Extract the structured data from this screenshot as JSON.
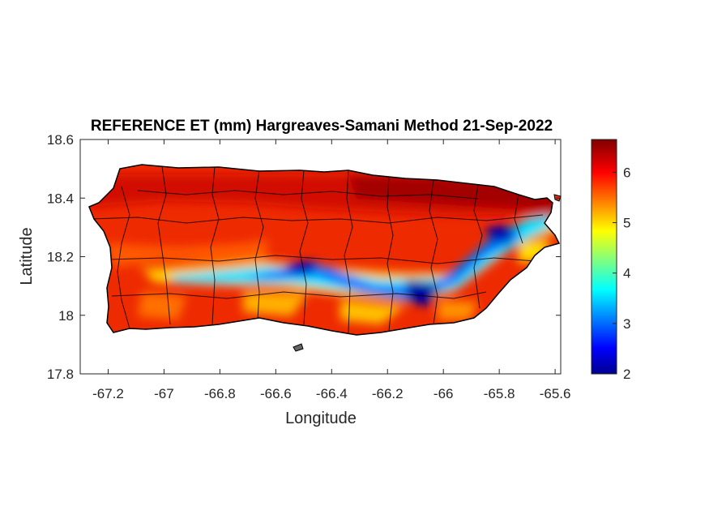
{
  "chart_data": {
    "type": "heatmap",
    "title": "REFERENCE ET (mm) Hargreaves-Samani Method  21-Sep-2022",
    "xlabel": "Longitude",
    "ylabel": "Latitude",
    "xlim": [
      -67.3,
      -65.58
    ],
    "ylim": [
      17.8,
      18.6
    ],
    "xticks": [
      -67.2,
      -67,
      -66.8,
      -66.6,
      -66.4,
      -66.2,
      -66,
      -65.8,
      -65.6
    ],
    "xtick_labels": [
      "-67.2",
      "-67",
      "-66.8",
      "-66.6",
      "-66.4",
      "-66.2",
      "-66",
      "-65.8",
      "-65.6"
    ],
    "yticks": [
      17.8,
      18,
      18.2,
      18.4,
      18.6
    ],
    "ytick_labels": [
      "17.8",
      "18",
      "18.2",
      "18.4",
      "18.6"
    ],
    "colorbar": {
      "colormap": "jet",
      "clim": [
        2,
        6.65
      ],
      "ticks": [
        2,
        3,
        4,
        5,
        6
      ],
      "tick_labels": [
        "2",
        "3",
        "4",
        "5",
        "6"
      ]
    },
    "grid": false,
    "values_summary": {
      "north_coast": 6.5,
      "western_interior": 6.0,
      "central_cordillera": 3.0,
      "south_slope": 5.0,
      "eastern_highlands_min": 2.0
    }
  },
  "colors": {
    "axis": "#262626",
    "background": "#ffffff",
    "boundaries": "#000000"
  }
}
